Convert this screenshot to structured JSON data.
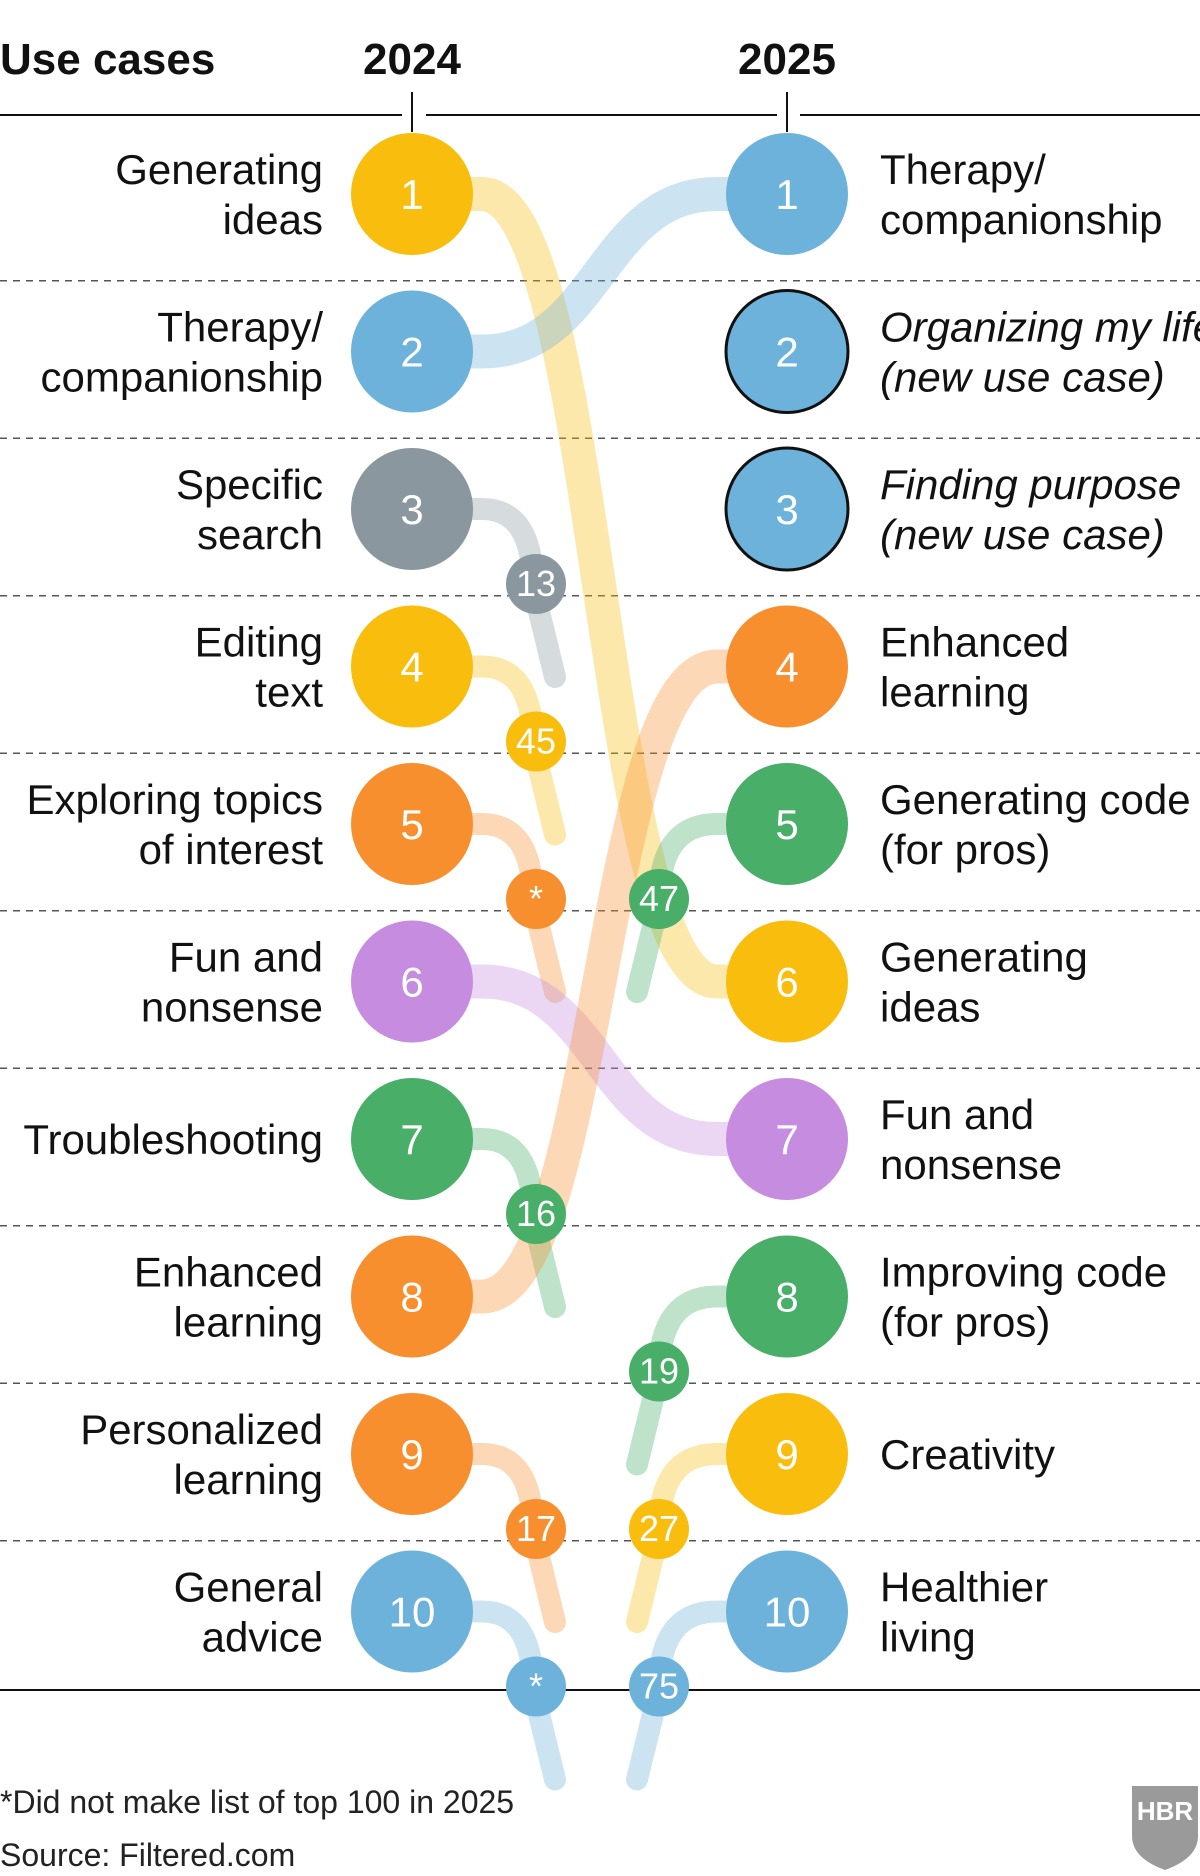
{
  "chart_data": {
    "type": "table",
    "headers": {
      "use_cases": "Use cases",
      "year_a": "2024",
      "year_b": "2025"
    },
    "colors": {
      "yellow": "#F9BD0E",
      "blue": "#6CB2DB",
      "gray": "#8A979F",
      "orange": "#F78F2F",
      "purple": "#C58CE0",
      "green": "#48AE68"
    },
    "ranks_2024": [
      {
        "rank": "1",
        "label": [
          "Generating",
          "ideas"
        ],
        "color": "yellow",
        "rank_2025": "6"
      },
      {
        "rank": "2",
        "label": [
          "Therapy/",
          "companionship"
        ],
        "color": "blue",
        "rank_2025": "1"
      },
      {
        "rank": "3",
        "label": [
          "Specific",
          "search"
        ],
        "color": "gray",
        "rank_2025": "13"
      },
      {
        "rank": "4",
        "label": [
          "Editing",
          "text"
        ],
        "color": "yellow",
        "rank_2025": "45"
      },
      {
        "rank": "5",
        "label": [
          "Exploring topics",
          "of interest"
        ],
        "color": "orange",
        "rank_2025": "*"
      },
      {
        "rank": "6",
        "label": [
          "Fun and",
          "nonsense"
        ],
        "color": "purple",
        "rank_2025": "7"
      },
      {
        "rank": "7",
        "label": [
          "Troubleshooting"
        ],
        "color": "green",
        "rank_2025": "16"
      },
      {
        "rank": "8",
        "label": [
          "Enhanced",
          "learning"
        ],
        "color": "orange",
        "rank_2025": "4"
      },
      {
        "rank": "9",
        "label": [
          "Personalized",
          "learning"
        ],
        "color": "orange",
        "rank_2025": "17"
      },
      {
        "rank": "10",
        "label": [
          "General",
          "advice"
        ],
        "color": "blue",
        "rank_2025": "*"
      }
    ],
    "ranks_2025": [
      {
        "rank": "1",
        "label": [
          "Therapy/",
          "companionship"
        ],
        "color": "blue",
        "new": false,
        "rank_2024": "2"
      },
      {
        "rank": "2",
        "label": [
          "Organizing my life",
          "(new use case)"
        ],
        "color": "blue",
        "new": true,
        "rank_2024": ""
      },
      {
        "rank": "3",
        "label": [
          "Finding purpose",
          "(new use case)"
        ],
        "color": "blue",
        "new": true,
        "rank_2024": ""
      },
      {
        "rank": "4",
        "label": [
          "Enhanced",
          "learning"
        ],
        "color": "orange",
        "new": false,
        "rank_2024": "8"
      },
      {
        "rank": "5",
        "label": [
          "Generating code",
          "(for pros)"
        ],
        "color": "green",
        "new": false,
        "rank_2024": "47"
      },
      {
        "rank": "6",
        "label": [
          "Generating",
          "ideas"
        ],
        "color": "yellow",
        "new": false,
        "rank_2024": "1"
      },
      {
        "rank": "7",
        "label": [
          "Fun and",
          "nonsense"
        ],
        "color": "purple",
        "new": false,
        "rank_2024": "6"
      },
      {
        "rank": "8",
        "label": [
          "Improving code",
          "(for pros)"
        ],
        "color": "green",
        "new": false,
        "rank_2024": "19"
      },
      {
        "rank": "9",
        "label": [
          "Creativity"
        ],
        "color": "yellow",
        "new": false,
        "rank_2024": "27"
      },
      {
        "rank": "10",
        "label": [
          "Healthier",
          "living"
        ],
        "color": "blue",
        "new": false,
        "rank_2024": "75"
      }
    ],
    "footnote": "*Did not make list of top 100 in 2025",
    "source": "Source: Filtered.com",
    "logo_text": "HBR"
  }
}
